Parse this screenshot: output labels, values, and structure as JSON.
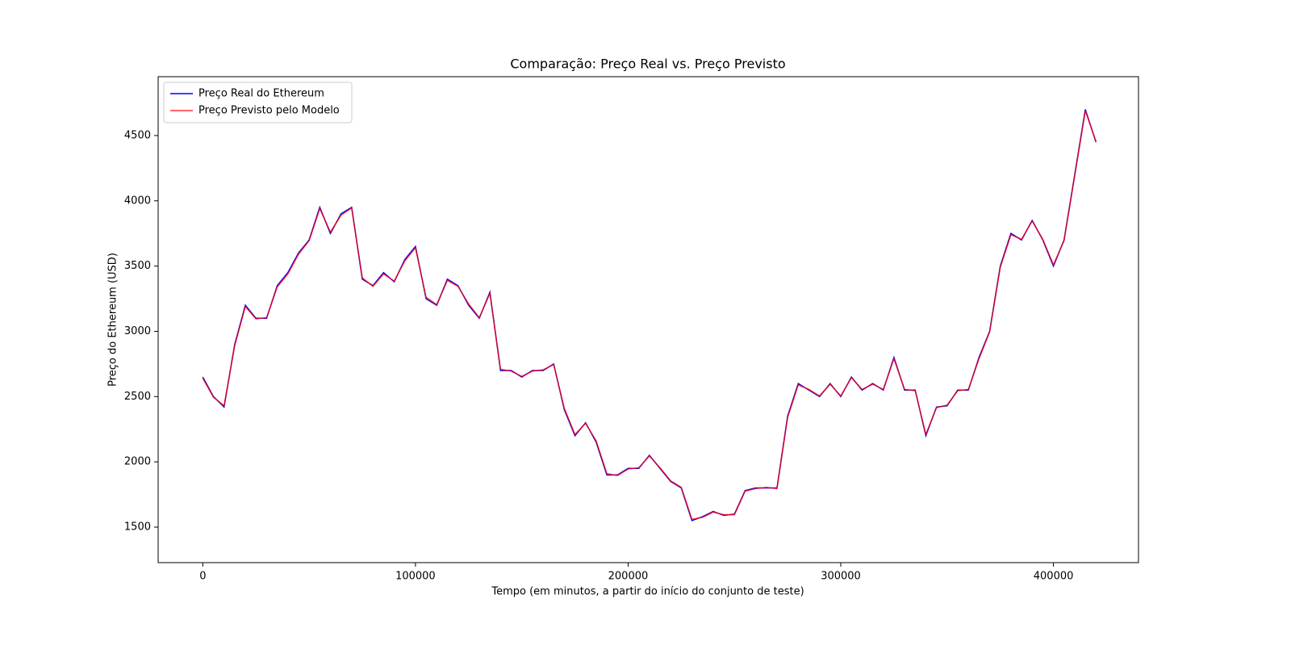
{
  "chart_data": {
    "type": "line",
    "title": "Comparação: Preço Real vs. Preço Previsto",
    "xlabel": "Tempo (em minutos, a partir do início do conjunto de teste)",
    "ylabel": "Preço do Ethereum (USD)",
    "x": [
      0,
      5000,
      10000,
      15000,
      20000,
      25000,
      30000,
      35000,
      40000,
      45000,
      50000,
      55000,
      60000,
      65000,
      70000,
      75000,
      80000,
      85000,
      90000,
      95000,
      100000,
      105000,
      110000,
      115000,
      120000,
      125000,
      130000,
      135000,
      140000,
      145000,
      150000,
      155000,
      160000,
      165000,
      170000,
      175000,
      180000,
      185000,
      190000,
      195000,
      200000,
      205000,
      210000,
      215000,
      220000,
      225000,
      230000,
      235000,
      240000,
      245000,
      250000,
      255000,
      260000,
      265000,
      270000,
      275000,
      280000,
      285000,
      290000,
      295000,
      300000,
      305000,
      310000,
      315000,
      320000,
      325000,
      330000,
      335000,
      340000,
      345000,
      350000,
      355000,
      360000,
      365000,
      370000,
      375000,
      380000,
      385000,
      390000,
      395000,
      400000,
      405000,
      410000,
      415000,
      420000
    ],
    "series": [
      {
        "name": "Preço Real do Ethereum",
        "color": "#0000ff",
        "values": [
          2650,
          2500,
          2420,
          2900,
          3200,
          3100,
          3100,
          3350,
          3450,
          3600,
          3700,
          3950,
          3750,
          3900,
          3950,
          3400,
          3350,
          3450,
          3380,
          3550,
          3650,
          3250,
          3200,
          3400,
          3350,
          3200,
          3100,
          3300,
          2700,
          2700,
          2650,
          2700,
          2700,
          2750,
          2400,
          2200,
          2300,
          2150,
          1900,
          1900,
          1950,
          1950,
          2050,
          1950,
          1850,
          1800,
          1550,
          1580,
          1620,
          1590,
          1600,
          1780,
          1800,
          1800,
          1800,
          2350,
          2600,
          2550,
          2500,
          2600,
          2500,
          2650,
          2550,
          2600,
          2550,
          2800,
          2550,
          2550,
          2200,
          2420,
          2430,
          2550,
          2550,
          2800,
          3000,
          3500,
          3750,
          3700,
          3850,
          3700,
          3500,
          3700,
          4200,
          4700,
          4450
        ]
      },
      {
        "name": "Preço Previsto pelo Modelo",
        "color": "#ff0000",
        "values": [
          2640,
          2495,
          2430,
          2890,
          3190,
          3095,
          3105,
          3340,
          3440,
          3590,
          3695,
          3940,
          3760,
          3890,
          3945,
          3410,
          3345,
          3440,
          3385,
          3540,
          3640,
          3260,
          3205,
          3390,
          3345,
          3210,
          3105,
          3290,
          2710,
          2695,
          2655,
          2695,
          2705,
          2745,
          2410,
          2210,
          2295,
          2160,
          1910,
          1895,
          1945,
          1955,
          2045,
          1955,
          1855,
          1805,
          1560,
          1575,
          1615,
          1595,
          1595,
          1775,
          1795,
          1805,
          1795,
          2340,
          2590,
          2555,
          2505,
          2595,
          2505,
          2645,
          2555,
          2595,
          2555,
          2790,
          2555,
          2545,
          2210,
          2415,
          2435,
          2545,
          2555,
          2790,
          2995,
          3490,
          3740,
          3705,
          3845,
          3705,
          3510,
          3695,
          4190,
          4690,
          4455
        ]
      }
    ],
    "xlim": [
      -21000,
      440000
    ],
    "ylim": [
      1228,
      4951
    ],
    "xticks": [
      0,
      100000,
      200000,
      300000,
      400000
    ],
    "yticks": [
      1500,
      2000,
      2500,
      3000,
      3500,
      4000,
      4500
    ],
    "legend": "upper left"
  }
}
